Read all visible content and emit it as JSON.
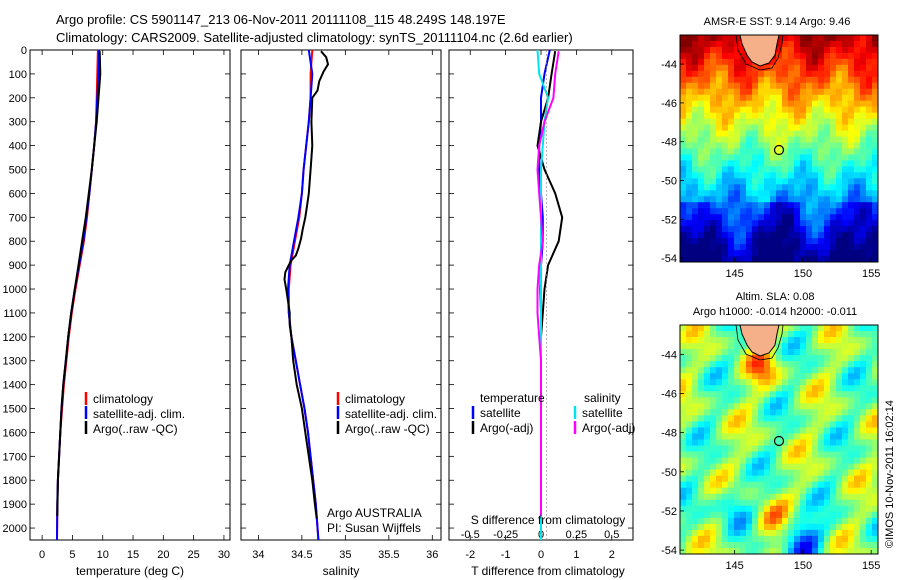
{
  "header": {
    "line1": "Argo profile: CS 5901147_213 06-Nov-2011 20111108_115 48.249S 148.197E",
    "line2": "Climatology: CARS2009. Satellite-adjusted climatology: synTS_20111104.nc (2.6d earlier)"
  },
  "panels": {
    "temperature": {
      "xlabel": "temperature (deg C)"
    },
    "salinity": {
      "xlabel": "salinity",
      "note1": "Argo AUSTRALIA",
      "note2": "PI: Susan Wijffels"
    },
    "difference": {
      "xlabel": "T difference from climatology",
      "xlabel_top": "S difference from climatology"
    }
  },
  "legend_profile": {
    "items": [
      {
        "label": "climatology",
        "color": "#ff0000"
      },
      {
        "label": "satellite-adj. clim.",
        "color": "#0000ff"
      },
      {
        "label": "Argo(..raw -QC)",
        "color": "#000000"
      }
    ]
  },
  "legend_diff": {
    "temperature_title": "temperature",
    "salinity_title": "salinity",
    "temperature": [
      {
        "label": "satellite",
        "color": "#0000ff"
      },
      {
        "label": "Argo(-adj)",
        "color": "#000000"
      }
    ],
    "salinity": [
      {
        "label": "satellite",
        "color": "#00e5ee"
      },
      {
        "label": "Argo(-adj)",
        "color": "#ff00ff"
      }
    ]
  },
  "maps": {
    "sst": {
      "title": "AMSR-E SST: 9.14 Argo: 9.46"
    },
    "sla": {
      "title1": "Altim. SLA: 0.08",
      "title2": "Argo h1000: -0.014 h2000: -0.011"
    },
    "watermark": "©IMOS 10-Nov-2011 16:02:14"
  },
  "chart_data": [
    {
      "type": "line",
      "panel": "temperature",
      "xlabel": "temperature (deg C)",
      "xlim": [
        -2,
        31
      ],
      "ylim": [
        0,
        2050
      ],
      "y_reversed": true,
      "xticks": [
        0,
        5,
        10,
        15,
        20,
        25,
        30
      ],
      "yticks": [
        0,
        100,
        200,
        300,
        400,
        500,
        600,
        700,
        800,
        900,
        1000,
        1100,
        1200,
        1300,
        1400,
        1500,
        1600,
        1700,
        1800,
        1900,
        2000
      ],
      "series": [
        {
          "name": "climatology",
          "color": "#ff0000",
          "x": [
            9.2,
            9.1,
            9.0,
            8.9,
            8.6,
            8.2,
            7.8,
            7.4,
            6.9,
            6.2,
            5.5,
            4.9,
            4.4,
            4.0,
            3.6,
            3.3,
            3.0,
            2.8,
            2.6,
            2.5,
            2.45
          ],
          "y": [
            0,
            100,
            200,
            300,
            400,
            500,
            600,
            700,
            800,
            900,
            1000,
            1100,
            1200,
            1300,
            1400,
            1500,
            1600,
            1700,
            1800,
            1900,
            2050
          ]
        },
        {
          "name": "satellite-adj. clim.",
          "color": "#0000ff",
          "x": [
            9.4,
            9.3,
            9.1,
            8.9,
            8.6,
            8.2,
            7.8,
            7.3,
            6.8,
            6.1,
            5.4,
            4.8,
            4.3,
            3.9,
            3.5,
            3.2,
            3.0,
            2.8,
            2.6,
            2.5,
            2.45
          ],
          "y": [
            0,
            100,
            200,
            300,
            400,
            500,
            600,
            700,
            800,
            900,
            1000,
            1100,
            1200,
            1300,
            1400,
            1500,
            1600,
            1700,
            1800,
            1900,
            2050
          ]
        },
        {
          "name": "Argo(..raw -QC)",
          "color": "#000000",
          "x": [
            9.5,
            9.6,
            9.3,
            9.0,
            8.6,
            8.2,
            7.7,
            7.2,
            6.6,
            6.0,
            5.4,
            4.8,
            4.3,
            3.9,
            3.5,
            3.2,
            3.0,
            2.8,
            2.6,
            2.5
          ],
          "y": [
            5,
            100,
            200,
            300,
            400,
            500,
            600,
            700,
            800,
            900,
            1000,
            1100,
            1200,
            1300,
            1400,
            1500,
            1600,
            1700,
            1800,
            1950
          ]
        }
      ]
    },
    {
      "type": "line",
      "panel": "salinity",
      "xlabel": "salinity",
      "xlim": [
        33.8,
        36.1
      ],
      "ylim": [
        0,
        2050
      ],
      "y_reversed": true,
      "xticks": [
        34,
        34.5,
        35,
        35.5,
        36
      ],
      "series": [
        {
          "name": "climatology",
          "color": "#ff0000",
          "x": [
            34.62,
            34.6,
            34.6,
            34.58,
            34.55,
            34.52,
            34.5,
            34.47,
            34.42,
            34.37,
            34.35,
            34.35,
            34.38,
            34.43,
            34.48,
            34.53,
            34.57,
            34.6,
            34.63,
            34.66,
            34.69
          ],
          "y": [
            0,
            100,
            200,
            300,
            400,
            500,
            600,
            700,
            800,
            900,
            1000,
            1100,
            1200,
            1300,
            1400,
            1500,
            1600,
            1700,
            1800,
            1900,
            2050
          ]
        },
        {
          "name": "satellite-adj. clim.",
          "color": "#0000ff",
          "x": [
            34.58,
            34.62,
            34.6,
            34.58,
            34.55,
            34.52,
            34.5,
            34.46,
            34.41,
            34.36,
            34.34,
            34.35,
            34.38,
            34.43,
            34.48,
            34.53,
            34.57,
            34.6,
            34.63,
            34.66,
            34.69
          ],
          "y": [
            0,
            100,
            200,
            300,
            400,
            500,
            600,
            700,
            800,
            900,
            1000,
            1100,
            1200,
            1300,
            1400,
            1500,
            1600,
            1700,
            1800,
            1900,
            2050
          ]
        },
        {
          "name": "Argo(..raw -QC)",
          "color": "#000000",
          "x": [
            34.72,
            34.78,
            34.8,
            34.75,
            34.7,
            34.68,
            34.62,
            34.61,
            34.62,
            34.6,
            34.58,
            34.56,
            34.54,
            34.51,
            34.49,
            34.46,
            34.43,
            34.38,
            34.35,
            34.31,
            34.3,
            34.32,
            34.34,
            34.36,
            34.36,
            34.38,
            34.4,
            34.44,
            34.5,
            34.54,
            34.58,
            34.62,
            34.65,
            34.67
          ],
          "y": [
            5,
            30,
            60,
            90,
            130,
            170,
            200,
            300,
            400,
            500,
            600,
            650,
            700,
            750,
            790,
            830,
            860,
            880,
            900,
            930,
            960,
            1000,
            1050,
            1100,
            1150,
            1200,
            1300,
            1400,
            1500,
            1600,
            1700,
            1800,
            1900,
            1960
          ]
        }
      ]
    },
    {
      "type": "line",
      "panel": "difference",
      "xlabel": "T difference from climatology",
      "xlabel_top": "S difference from climatology",
      "xlim": [
        -2.6,
        2.6
      ],
      "ylim": [
        0,
        2050
      ],
      "y_reversed": true,
      "xticks": [
        -2,
        -1,
        0,
        1,
        2
      ],
      "xticks_top": [
        -0.5,
        -0.25,
        0,
        0.25,
        0.5
      ],
      "series": [
        {
          "name": "temperature satellite",
          "color": "#0000ff",
          "x": [
            0.25,
            0.1,
            0.0,
            0.0,
            -0.05,
            -0.05,
            0.0,
            0.05,
            0.05,
            0.0,
            -0.02,
            0.0,
            0.0,
            0.0,
            0.0,
            0.0,
            0.0,
            0.0,
            0.0,
            0.0,
            0.0
          ],
          "y": [
            0,
            100,
            200,
            300,
            400,
            500,
            600,
            700,
            800,
            900,
            1000,
            1100,
            1200,
            1300,
            1400,
            1500,
            1600,
            1700,
            1800,
            1900,
            2050
          ]
        },
        {
          "name": "temperature Argo(-adj)",
          "color": "#000000",
          "x": [
            0.4,
            0.3,
            0.2,
            0.0,
            -0.1,
            0.1,
            0.4,
            0.6,
            0.5,
            0.2,
            0.1,
            0.05,
            0.0,
            0.0,
            0.0,
            0.0,
            0.0,
            0.0,
            0.0,
            0.0
          ],
          "y": [
            5,
            100,
            200,
            300,
            400,
            500,
            600,
            700,
            800,
            900,
            1000,
            1100,
            1200,
            1300,
            1400,
            1500,
            1600,
            1700,
            1800,
            1950
          ]
        },
        {
          "name": "salinity satellite",
          "color": "#00e5ee",
          "x": [
            -0.1,
            -0.05,
            0.2,
            0.1,
            0.05,
            0.0,
            0.0,
            0.0,
            0.0,
            0.0,
            0.0,
            0.0,
            0.0,
            0.0,
            0.0,
            0.0,
            0.0,
            0.0,
            0.0,
            0.0,
            0.0
          ],
          "y": [
            0,
            100,
            200,
            300,
            400,
            500,
            600,
            700,
            800,
            900,
            1000,
            1100,
            1200,
            1300,
            1400,
            1500,
            1600,
            1700,
            1800,
            1900,
            2050
          ]
        },
        {
          "name": "salinity Argo(-adj)",
          "color": "#ff00ff",
          "x": [
            0.5,
            0.4,
            0.35,
            0.1,
            -0.05,
            -0.1,
            -0.05,
            0.0,
            0.05,
            -0.05,
            -0.1,
            -0.1,
            -0.05,
            0.0,
            0.0,
            0.0,
            0.0,
            0.0,
            0.0,
            0.0
          ],
          "y": [
            5,
            100,
            200,
            300,
            400,
            500,
            600,
            700,
            800,
            900,
            1000,
            1100,
            1200,
            1300,
            1400,
            1500,
            1600,
            1700,
            1800,
            1950
          ]
        }
      ]
    },
    {
      "type": "heatmap",
      "panel": "sst_map",
      "title": "AMSR-E SST: 9.14 Argo: 9.46",
      "xlim": [
        141,
        155.5
      ],
      "ylim": [
        -54.2,
        -42.5
      ],
      "xticks": [
        145,
        150,
        155
      ],
      "yticks": [
        -44,
        -46,
        -48,
        -50,
        -52,
        -54
      ],
      "marker": {
        "lon": 148.197,
        "lat": -48.249
      }
    },
    {
      "type": "heatmap",
      "panel": "sla_map",
      "title": "Altim. SLA: 0.08",
      "subtitle": "Argo h1000: -0.014 h2000: -0.011",
      "xlim": [
        141,
        155.5
      ],
      "ylim": [
        -54.2,
        -42.5
      ],
      "xticks": [
        145,
        150,
        155
      ],
      "yticks": [
        -44,
        -46,
        -48,
        -50,
        -52,
        -54
      ],
      "marker": {
        "lon": 148.197,
        "lat": -48.249
      }
    }
  ]
}
